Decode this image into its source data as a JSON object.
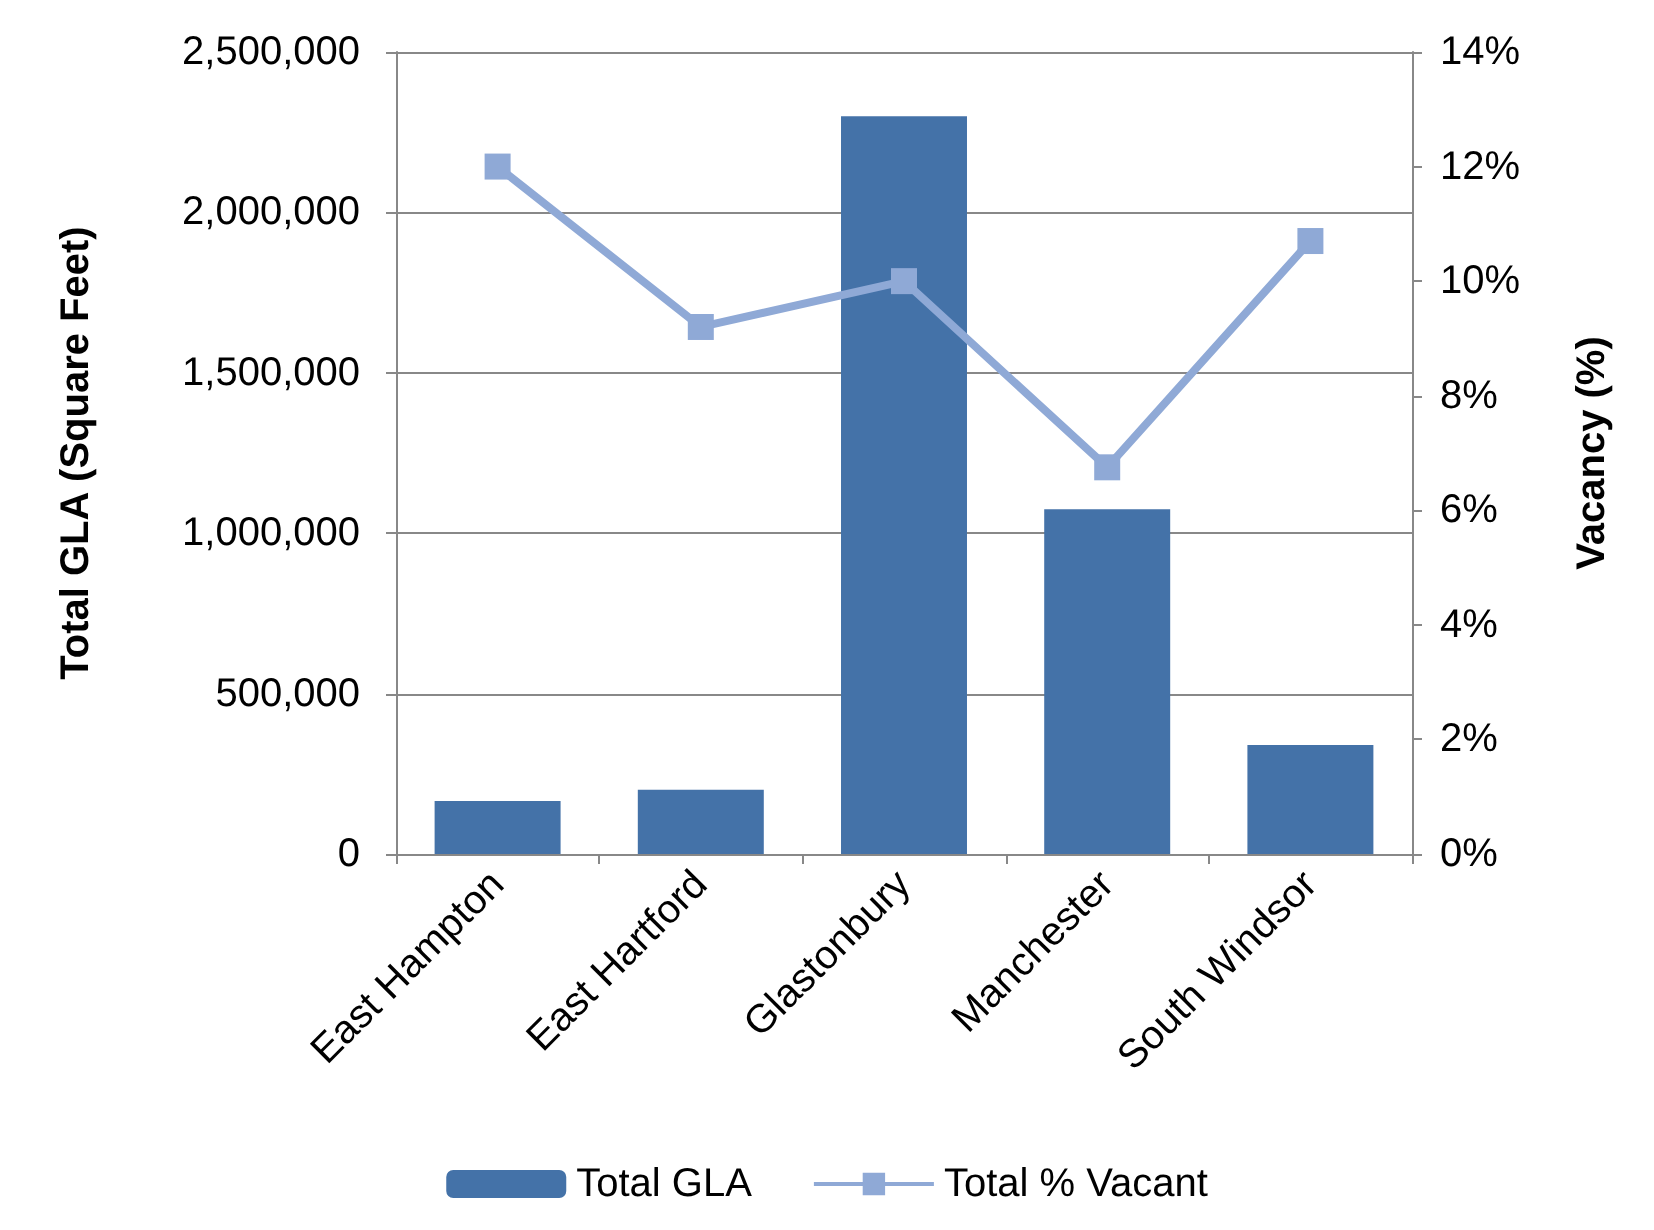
{
  "chart_data": {
    "type": "bar",
    "ylabel": "Total GLA (Square Feet)",
    "y2label": "Vacancy (%)",
    "categories": [
      "East Hampton",
      "East Hartford",
      "Glastonbury",
      "Manchester",
      "South Windsor"
    ],
    "series": [
      {
        "name": "Total GLA",
        "color": "#4472a8",
        "values": [
          165000,
          200000,
          2300000,
          1075000,
          340000
        ]
      },
      {
        "name": "Total % Vacant",
        "type": "line",
        "axis": "y2",
        "color": "#8fa9d6",
        "marker": "square",
        "values": [
          12.0,
          9.2,
          10.0,
          6.75,
          10.7
        ]
      }
    ],
    "ylim": [
      0,
      2500000
    ],
    "yticks": [
      {
        "value": 0,
        "label": "0"
      },
      {
        "value": 500000,
        "label": "500,000"
      },
      {
        "value": 1000000,
        "label": "1,000,000"
      },
      {
        "value": 1500000,
        "label": "1,500,000"
      },
      {
        "value": 2000000,
        "label": "2,000,000"
      },
      {
        "value": 2500000,
        "label": "2,500,000"
      }
    ],
    "y2lim": [
      0,
      14
    ],
    "y2ticks": [
      {
        "value": 0,
        "label": "0%"
      },
      {
        "value": 2,
        "label": "2%"
      },
      {
        "value": 4,
        "label": "4%"
      },
      {
        "value": 6,
        "label": "6%"
      },
      {
        "value": 8,
        "label": "8%"
      },
      {
        "value": 10,
        "label": "10%"
      },
      {
        "value": 12,
        "label": "12%"
      },
      {
        "value": 14,
        "label": "14%"
      }
    ],
    "grid": "y",
    "legend": "bottom"
  }
}
